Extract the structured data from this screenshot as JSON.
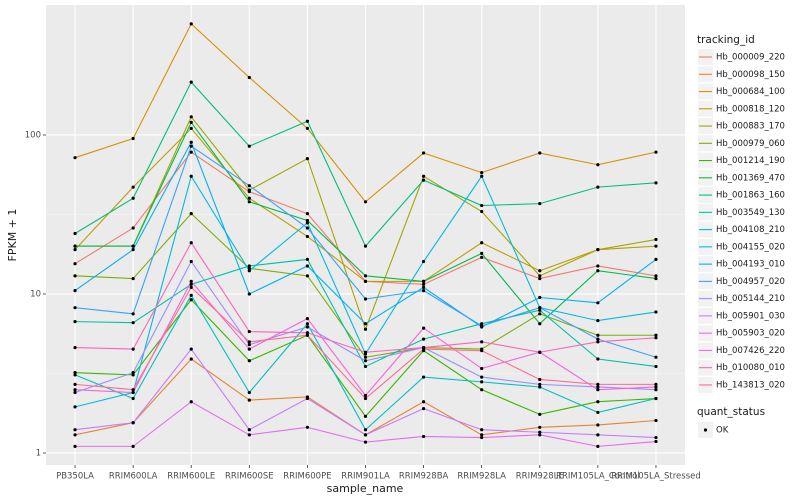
{
  "chart_data": {
    "type": "line",
    "log_y": true,
    "grid": true,
    "x_label": "sample_name",
    "y_label": "FPKM + 1",
    "categories": [
      "PB350LA",
      "RRIM600LA",
      "RRIM600LE",
      "RRIM600SE",
      "RRIM600PE",
      "RRIM901LA",
      "RRIM928BA",
      "RRIM928LA",
      "RRIM928LE",
      "RRIM105LA_Control",
      "RRIM105LA_Stressed"
    ],
    "ylim": [
      0.84,
      657
    ],
    "yticks": [
      1,
      10,
      100
    ],
    "legend_title": "tracking_id",
    "legend_position": "right",
    "point_legend_title": "quant_status",
    "point_legend_label": "OK",
    "point_color": "#000000",
    "series": [
      {
        "name": "Hb_000009_220",
        "color": "#F8766D",
        "values": [
          15.5,
          26,
          78,
          44,
          32,
          12,
          11.5,
          17,
          12.5,
          15,
          13
        ]
      },
      {
        "name": "Hb_000098_150",
        "color": "#EA8331",
        "values": [
          1.3,
          1.55,
          3.9,
          2.15,
          2.25,
          1.3,
          2.1,
          1.3,
          1.45,
          1.5,
          1.6
        ]
      },
      {
        "name": "Hb_000684_100",
        "color": "#D89000",
        "values": [
          72,
          95,
          500,
          230,
          110,
          38,
          77,
          58,
          77,
          65,
          78
        ]
      },
      {
        "name": "Hb_000818_120",
        "color": "#C09B00",
        "values": [
          19,
          47,
          110,
          40,
          23,
          12,
          12,
          21,
          14,
          19,
          20
        ]
      },
      {
        "name": "Hb_000883_170",
        "color": "#A3A500",
        "values": [
          20,
          20,
          130,
          45,
          71,
          6,
          55,
          33,
          13,
          19,
          22
        ]
      },
      {
        "name": "Hb_000979_060",
        "color": "#7CAE00",
        "values": [
          13,
          12.5,
          32,
          14.5,
          13,
          4,
          4.6,
          4.5,
          7.5,
          5.5,
          5.5
        ]
      },
      {
        "name": "Hb_001214_190",
        "color": "#39B600",
        "values": [
          3.2,
          3.1,
          9.2,
          3.8,
          5.5,
          1.7,
          4.4,
          2.5,
          1.75,
          2.1,
          2.2
        ]
      },
      {
        "name": "Hb_001369_470",
        "color": "#00BB4E",
        "values": [
          20,
          20,
          120,
          38,
          29,
          13,
          12,
          18,
          6.5,
          14,
          12.5
        ]
      },
      {
        "name": "Hb_001863_160",
        "color": "#00BF7D",
        "values": [
          24,
          40,
          215,
          85,
          122,
          20,
          52,
          36,
          37,
          47,
          50
        ]
      },
      {
        "name": "Hb_003549_130",
        "color": "#00C1A3",
        "values": [
          6.7,
          6.6,
          11.5,
          15,
          16.5,
          3.5,
          5.2,
          6.5,
          7.9,
          3.9,
          3.5
        ]
      },
      {
        "name": "Hb_004108_210",
        "color": "#00BFC4",
        "values": [
          3.1,
          2.2,
          9.8,
          2.4,
          6.5,
          1.4,
          3.0,
          2.8,
          2.6,
          1.8,
          2.2
        ]
      },
      {
        "name": "Hb_004155_020",
        "color": "#00BAE0",
        "values": [
          1.95,
          2.4,
          55,
          14,
          28,
          4.2,
          16,
          55,
          8.2,
          6.8,
          7.7
        ]
      },
      {
        "name": "Hb_004193_010",
        "color": "#00B0F6",
        "values": [
          10.5,
          19,
          90,
          10,
          15,
          6.5,
          11,
          6.2,
          9.5,
          8.8,
          16.5
        ]
      },
      {
        "name": "Hb_004957_020",
        "color": "#35A2FF",
        "values": [
          8.2,
          7.5,
          85,
          48,
          26,
          9.3,
          10.5,
          6.3,
          8.2,
          5.2,
          4.0
        ]
      },
      {
        "name": "Hb_005144_210",
        "color": "#9590FF",
        "values": [
          2.4,
          3.2,
          16,
          4.8,
          6.2,
          3.8,
          4.6,
          3.0,
          2.7,
          2.6,
          2.5
        ]
      },
      {
        "name": "Hb_005901_030",
        "color": "#C77CFF",
        "values": [
          1.4,
          1.55,
          4.5,
          1.4,
          2.2,
          1.3,
          1.9,
          1.4,
          1.35,
          1.3,
          1.25
        ]
      },
      {
        "name": "Hb_005903_020",
        "color": "#E76BF3",
        "values": [
          1.1,
          1.1,
          2.1,
          1.3,
          1.45,
          1.17,
          1.27,
          1.25,
          1.3,
          1.1,
          1.18
        ]
      },
      {
        "name": "Hb_007426_220",
        "color": "#FA62DB",
        "values": [
          2.5,
          2.4,
          12,
          4.5,
          7.0,
          2.3,
          6.1,
          3.4,
          4.3,
          2.5,
          2.6
        ]
      },
      {
        "name": "Hb_010080_010",
        "color": "#FF62BC",
        "values": [
          4.6,
          4.5,
          21,
          5.8,
          5.7,
          4.3,
          4.6,
          5.0,
          4.3,
          5.0,
          5.3
        ]
      },
      {
        "name": "Hb_143813_020",
        "color": "#FF6C91",
        "values": [
          2.7,
          2.5,
          11,
          5.0,
          5.5,
          2.2,
          4.5,
          4.4,
          2.9,
          2.7,
          2.7
        ]
      }
    ]
  }
}
